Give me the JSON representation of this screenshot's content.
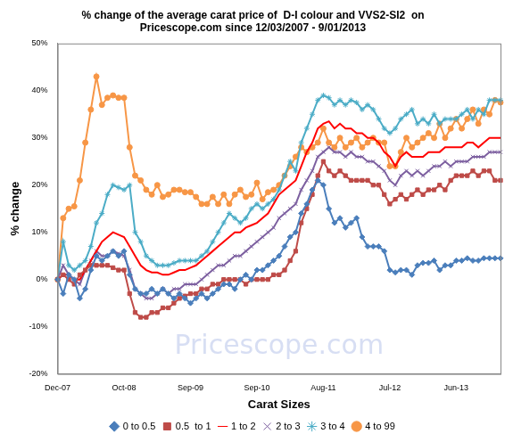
{
  "chart_data": {
    "type": "line",
    "title": [
      "% change of the average carat price of  D-I colour and VVS2-SI2  on",
      "Pricescope.com since 12/03/2007 - 9/01/2013"
    ],
    "x_label": "Carat Sizes",
    "y_label": "% change",
    "annotations": [
      {
        "text": "Pricescope.com"
      }
    ],
    "categories": [
      "Dec-07",
      null,
      null,
      null,
      null,
      null,
      null,
      null,
      null,
      null,
      null,
      null,
      "Oct-08",
      null,
      null,
      null,
      null,
      null,
      null,
      null,
      null,
      null,
      null,
      null,
      "Sep-09",
      null,
      null,
      null,
      null,
      null,
      null,
      null,
      null,
      null,
      null,
      null,
      "Sep-10",
      null,
      null,
      null,
      null,
      null,
      null,
      null,
      null,
      null,
      null,
      null,
      "Aug-11",
      null,
      null,
      null,
      null,
      null,
      null,
      null,
      null,
      null,
      null,
      null,
      "Jul-12",
      null,
      null,
      null,
      null,
      null,
      null,
      null,
      null,
      null,
      null,
      null,
      "Jun-13",
      null,
      null,
      null,
      null,
      null,
      null,
      null,
      null
    ],
    "series": [
      {
        "name": "0 to 0.5",
        "color": "#4a7ebb",
        "marker": "diamond",
        "values": [
          0,
          -3,
          1,
          0,
          -4,
          -2,
          2,
          5,
          4,
          5,
          6,
          5,
          6,
          1,
          -2,
          -3,
          -3,
          -2,
          -3,
          -2,
          -3,
          -4,
          -3,
          -4,
          -5,
          -4,
          -3,
          -4,
          -3,
          -2,
          -1,
          -1,
          -2,
          0,
          1,
          0,
          2,
          2,
          3,
          4,
          5,
          7,
          9,
          10,
          14,
          16,
          19,
          21,
          20,
          15,
          12,
          13,
          11,
          12,
          13,
          9,
          7,
          7,
          7,
          6,
          2,
          1.5,
          2,
          2,
          1,
          3,
          3.5,
          3.5,
          4,
          2,
          3,
          3,
          4,
          4,
          4.5,
          4,
          4,
          4.5,
          4.5,
          4.5,
          4.5
        ]
      },
      {
        "name": "0.5  to 1",
        "color": "#be4b48",
        "marker": "square",
        "values": [
          0,
          1,
          0,
          -1,
          1,
          2,
          3,
          3,
          3,
          3,
          2.5,
          2,
          2,
          -3,
          -7,
          -8,
          -8,
          -7,
          -7,
          -6,
          -6,
          -5,
          -4,
          -3.5,
          -3,
          -3,
          -2,
          -2,
          -1,
          -1,
          0,
          0,
          0,
          0,
          -1,
          0,
          0,
          0,
          0,
          1,
          1,
          2,
          4,
          6,
          12,
          15,
          18,
          22,
          25,
          23,
          22,
          23,
          22,
          21,
          21,
          21,
          21,
          20,
          20,
          18,
          16,
          17,
          18,
          17,
          18,
          19,
          18,
          19,
          19,
          20,
          19,
          21,
          22,
          22,
          22,
          23,
          22,
          23,
          23,
          21,
          21
        ]
      },
      {
        "name": "1 to 2",
        "color": "#ff0000",
        "marker": "none",
        "values": [
          0,
          1,
          1,
          0,
          0,
          2,
          4,
          6,
          8,
          9,
          10,
          9.5,
          9,
          7,
          5,
          3,
          2,
          1.5,
          1.5,
          1,
          1,
          1.5,
          2,
          2,
          2.5,
          3,
          4,
          5,
          6,
          7,
          8,
          9,
          10,
          10,
          11,
          11.5,
          12,
          13,
          14,
          16,
          18,
          19,
          20,
          21,
          24,
          27,
          29,
          32,
          33,
          33.5,
          32,
          33,
          32,
          32,
          31,
          31,
          30,
          30,
          29,
          27,
          26,
          24,
          26,
          27,
          26,
          26,
          26,
          27,
          27,
          27,
          28,
          28,
          28,
          28,
          29,
          29,
          28,
          29,
          30,
          30,
          30
        ]
      },
      {
        "name": "2 to 3",
        "color": "#7d60a0",
        "marker": "x",
        "values": [
          0,
          3,
          1,
          0,
          -1,
          2,
          4,
          6,
          5,
          5,
          6,
          5.5,
          5,
          2,
          -2,
          -3,
          -4,
          -4,
          -3,
          -2,
          -3,
          -2,
          -2,
          -1,
          -1,
          -1,
          0,
          1,
          2,
          3,
          3,
          4,
          5,
          5,
          6,
          7,
          8,
          9,
          10,
          11,
          13,
          14,
          15,
          16,
          19,
          21,
          23,
          26,
          27,
          28,
          27,
          27,
          26,
          27,
          26,
          26,
          25,
          25,
          24,
          23,
          21,
          20,
          22,
          23,
          22,
          23,
          22,
          23,
          24,
          24,
          25,
          24,
          25,
          25,
          25,
          26,
          26,
          26,
          27,
          27,
          27
        ]
      },
      {
        "name": "3 to 4",
        "color": "#4bacc6",
        "marker": "asterisk",
        "values": [
          0,
          8,
          3,
          2,
          3,
          4,
          7,
          12,
          14,
          18,
          20,
          19.5,
          19,
          20,
          10,
          8,
          5,
          4,
          3,
          3,
          3,
          3.5,
          4,
          4,
          4,
          4,
          5,
          6,
          8,
          10,
          12,
          14,
          13,
          12,
          13,
          15,
          16,
          15,
          16,
          17,
          19,
          22,
          25,
          23,
          29,
          32,
          35,
          38,
          39,
          38.5,
          37,
          38,
          37,
          38,
          37.5,
          36,
          37,
          36,
          34,
          32,
          31,
          32,
          34,
          35,
          36,
          33,
          34,
          33,
          35,
          33,
          34,
          34,
          34,
          35,
          36,
          34,
          36,
          35,
          38,
          38,
          38
        ]
      },
      {
        "name": "4 to 99",
        "color": "#f79646",
        "marker": "circle",
        "values": [
          0,
          13,
          15,
          15.5,
          21,
          29,
          36,
          43,
          37,
          38.5,
          39,
          38.5,
          38.5,
          28,
          22,
          21,
          19,
          18,
          20,
          17.5,
          18,
          19,
          19,
          18.5,
          18.5,
          17.5,
          16,
          16,
          17.5,
          16,
          18,
          16,
          18,
          19,
          17.5,
          18,
          20.5,
          17,
          18.5,
          19,
          20,
          22,
          24,
          26,
          28,
          27,
          28,
          29,
          32,
          29,
          28,
          30,
          28,
          29,
          30,
          28,
          29,
          30,
          29,
          29,
          24,
          24,
          27,
          30,
          28,
          29,
          30,
          31,
          30,
          33,
          30,
          32,
          34,
          32,
          34,
          36,
          33,
          36,
          35,
          38,
          37.5
        ]
      }
    ],
    "ylim": [
      -20,
      50
    ],
    "yticks": [
      {
        "value": -20,
        "label": "-20%"
      },
      {
        "value": -10,
        "label": "-10%"
      },
      {
        "value": 0,
        "label": "0%"
      },
      {
        "value": 10,
        "label": "10%"
      },
      {
        "value": 20,
        "label": "20%"
      },
      {
        "value": 30,
        "label": "30%"
      },
      {
        "value": 40,
        "label": "40%"
      },
      {
        "value": 50,
        "label": "50%"
      }
    ],
    "grid": false,
    "legend": "bottom"
  }
}
